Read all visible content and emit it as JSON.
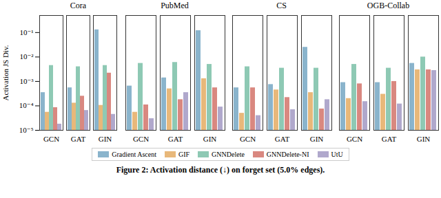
{
  "caption": "Figure 2: Activation distance (↓) on forget set (5.0% edges).",
  "chart_data": [
    {
      "type": "bar",
      "title": "Cora",
      "ylabel": "Activation JS Div.",
      "log": "y",
      "grid": false,
      "legend": "bottom",
      "categories": [
        "GCN",
        "GAT",
        "GIN"
      ],
      "series": [
        {
          "name": "Gradient Ascent",
          "color": "#8ab4cc",
          "values": [
            0.00035,
            0.00055,
            0.13
          ]
        },
        {
          "name": "GIF",
          "color": "#e8b87a",
          "values": [
            5.5e-05,
            0.00013,
            0.000105
          ]
        },
        {
          "name": "GNNDelete",
          "color": "#8ec9b4",
          "values": [
            0.0045,
            0.004,
            0.0045
          ]
        },
        {
          "name": "GNNDelete-NI",
          "color": "#d98880",
          "values": [
            8.5e-05,
            0.00025,
            0.0022
          ]
        },
        {
          "name": "UtU",
          "color": "#b0a8cc",
          "values": [
            1.8e-05,
            6.5e-05,
            4.5e-05
          ]
        }
      ],
      "ylim": [
        1e-05,
        0.5
      ],
      "yticks": [
        {
          "value": 1e-05,
          "label": "10⁻⁵"
        },
        {
          "value": 0.0001,
          "label": "10⁻⁴"
        },
        {
          "value": 0.001,
          "label": "10⁻³"
        },
        {
          "value": 0.01,
          "label": "10⁻²"
        },
        {
          "value": 0.1,
          "label": "10⁻¹"
        }
      ]
    },
    {
      "type": "bar",
      "title": "PubMed",
      "log": "y",
      "grid": false,
      "tick_labels": "x",
      "categories": [
        "GCN",
        "GAT",
        "GIN"
      ],
      "series": [
        {
          "name": "Gradient Ascent",
          "color": "#8ab4cc",
          "values": [
            0.00065,
            0.0014,
            0.12
          ]
        },
        {
          "name": "GIF",
          "color": "#e8b87a",
          "values": [
            5.5e-05,
            0.0005,
            0.0013
          ]
        },
        {
          "name": "GNNDelete",
          "color": "#8ec9b4",
          "values": [
            0.0055,
            0.006,
            0.005
          ]
        },
        {
          "name": "GNNDelete-NI",
          "color": "#d98880",
          "values": [
            0.00011,
            0.00018,
            0.00055
          ]
        },
        {
          "name": "UtU",
          "color": "#b0a8cc",
          "values": [
            3e-05,
            0.00035,
            9e-05
          ]
        }
      ],
      "ylim": [
        1e-05,
        0.5
      ]
    },
    {
      "type": "bar",
      "title": "CS",
      "log": "y",
      "grid": false,
      "tick_labels": "x",
      "categories": [
        "GCN",
        "GAT",
        "GIN"
      ],
      "series": [
        {
          "name": "Gradient Ascent",
          "color": "#8ab4cc",
          "values": [
            0.00055,
            0.00075,
            0.025
          ]
        },
        {
          "name": "GIF",
          "color": "#e8b87a",
          "values": [
            5e-05,
            0.00045,
            0.00035
          ]
        },
        {
          "name": "GNNDelete",
          "color": "#8ec9b4",
          "values": [
            0.004,
            0.0035,
            0.0035
          ]
        },
        {
          "name": "GNNDelete-NI",
          "color": "#d98880",
          "values": [
            0.00055,
            0.00022,
            7.5e-05
          ]
        },
        {
          "name": "UtU",
          "color": "#b0a8cc",
          "values": [
            4e-05,
            7e-05,
            0.00018
          ]
        }
      ],
      "ylim": [
        1e-05,
        0.5
      ]
    },
    {
      "type": "bar",
      "title": "OGB-Collab",
      "log": "y",
      "grid": false,
      "tick_labels": "x",
      "categories": [
        "GCN",
        "GAT",
        "GIN"
      ],
      "series": [
        {
          "name": "Gradient Ascent",
          "color": "#8ab4cc",
          "values": [
            0.0009,
            0.0009,
            0.0055
          ]
        },
        {
          "name": "GIF",
          "color": "#e8b87a",
          "values": [
            0.0002,
            0.0003,
            0.003
          ]
        },
        {
          "name": "GNNDelete",
          "color": "#8ec9b4",
          "values": [
            0.005,
            0.0035,
            0.01
          ]
        },
        {
          "name": "GNNDelete-NI",
          "color": "#d98880",
          "values": [
            0.0008,
            0.001,
            0.003
          ]
        },
        {
          "name": "UtU",
          "color": "#b0a8cc",
          "values": [
            0.00015,
            0.00012,
            0.0028
          ]
        }
      ],
      "ylim": [
        1e-05,
        0.5
      ]
    }
  ]
}
